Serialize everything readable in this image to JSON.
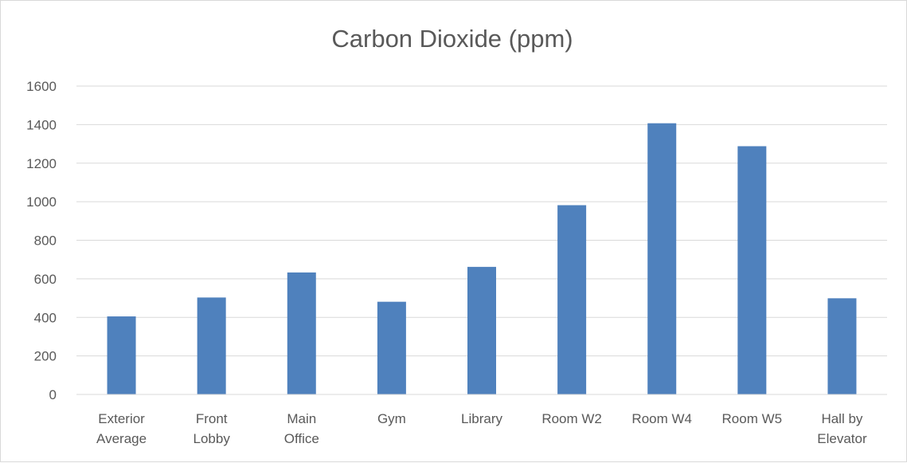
{
  "chart_data": {
    "type": "bar",
    "title": "Carbon Dioxide (ppm)",
    "xlabel": "",
    "ylabel": "",
    "ylim": [
      0,
      1600
    ],
    "yticks": [
      0,
      200,
      400,
      600,
      800,
      1000,
      1200,
      1400,
      1600
    ],
    "categories": [
      "Exterior Average",
      "Front Lobby",
      "Main Office",
      "Gym",
      "Library",
      "Room W2",
      "Room W4",
      "Room W5",
      "Hall by Elevator"
    ],
    "category_lines": [
      [
        "Exterior",
        "Average"
      ],
      [
        "Front",
        "Lobby"
      ],
      [
        "Main",
        "Office"
      ],
      [
        "Gym"
      ],
      [
        "Library"
      ],
      [
        "Room W2"
      ],
      [
        "Room W4"
      ],
      [
        "Room W5"
      ],
      [
        "Hall by",
        "Elevator"
      ]
    ],
    "values": [
      405,
      503,
      633,
      481,
      662,
      982,
      1407,
      1288,
      499
    ],
    "bar_color": "#4f81bd",
    "grid": true,
    "legend": "none"
  }
}
